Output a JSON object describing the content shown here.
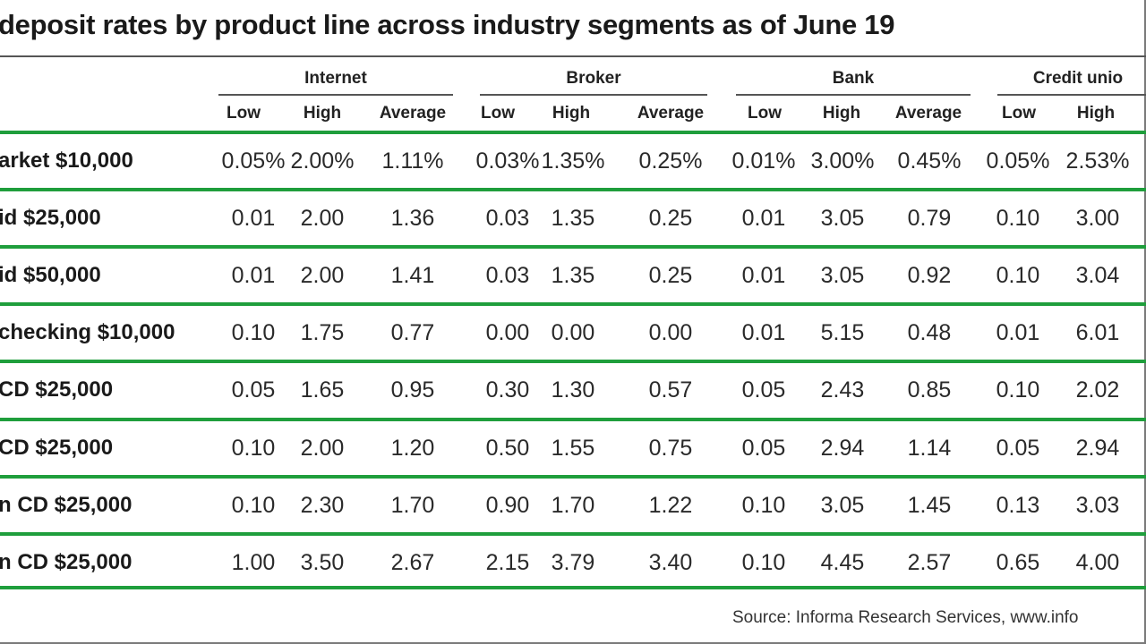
{
  "title": "deposit rates by product line across industry segments as of June 19",
  "groups": [
    {
      "label": "Internet"
    },
    {
      "label": "Broker"
    },
    {
      "label": "Bank"
    },
    {
      "label": "Credit unio"
    }
  ],
  "subheaders": {
    "low": "Low",
    "high": "High",
    "average": "Average"
  },
  "rows": [
    {
      "label": "arket $10,000",
      "values": [
        "0.05%",
        "2.00%",
        "1.11%",
        "0.03%",
        "1.35%",
        "0.25%",
        "0.01%",
        "3.00%",
        "0.45%",
        "0.05%",
        "2.53%"
      ]
    },
    {
      "label": "id $25,000",
      "values": [
        "0.01",
        "2.00",
        "1.36",
        "0.03",
        "1.35",
        "0.25",
        "0.01",
        "3.05",
        "0.79",
        "0.10",
        "3.00"
      ]
    },
    {
      "label": "id $50,000",
      "values": [
        "0.01",
        "2.00",
        "1.41",
        "0.03",
        "1.35",
        "0.25",
        "0.01",
        "3.05",
        "0.92",
        "0.10",
        "3.04"
      ]
    },
    {
      "label": "checking $10,000",
      "values": [
        "0.10",
        "1.75",
        "0.77",
        "0.00",
        "0.00",
        "0.00",
        "0.01",
        "5.15",
        "0.48",
        "0.01",
        "6.01"
      ]
    },
    {
      "label": "CD $25,000",
      "values": [
        "0.05",
        "1.65",
        "0.95",
        "0.30",
        "1.30",
        "0.57",
        "0.05",
        "2.43",
        "0.85",
        "0.10",
        "2.02"
      ]
    },
    {
      "label": "CD $25,000",
      "values": [
        "0.10",
        "2.00",
        "1.20",
        "0.50",
        "1.55",
        "0.75",
        "0.05",
        "2.94",
        "1.14",
        "0.05",
        "2.94"
      ]
    },
    {
      "label": "n CD $25,000",
      "values": [
        "0.10",
        "2.30",
        "1.70",
        "0.90",
        "1.70",
        "1.22",
        "0.10",
        "3.05",
        "1.45",
        "0.13",
        "3.03"
      ]
    },
    {
      "label": "n CD $25,000",
      "values": [
        "1.00",
        "3.50",
        "2.67",
        "2.15",
        "3.79",
        "3.40",
        "0.10",
        "4.45",
        "2.57",
        "0.65",
        "4.00"
      ]
    }
  ],
  "source": "Source: Informa Research Services, www.info",
  "colors": {
    "row_rule": "#1f9e3c",
    "header_rule": "#555555"
  }
}
